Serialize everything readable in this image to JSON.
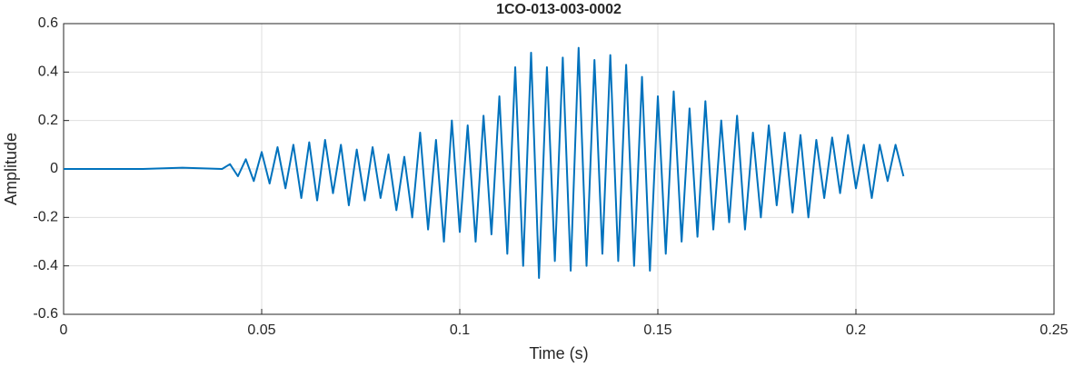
{
  "chart_data": {
    "type": "line",
    "title": "1CO-013-003-0002",
    "xlabel": "Time (s)",
    "ylabel": "Amplitude",
    "xlim": [
      0,
      0.25
    ],
    "xticks": [
      0,
      0.05,
      0.1,
      0.15,
      0.2,
      0.25
    ],
    "ylim": [
      -0.6,
      0.6
    ],
    "yticks": [
      -0.6,
      -0.4,
      -0.2,
      0,
      0.2,
      0.4,
      0.6
    ],
    "grid": true,
    "series": [
      {
        "color": "#0072bd",
        "x": [
          0,
          0.01,
          0.02,
          0.03,
          0.04,
          0.042,
          0.044,
          0.046,
          0.048,
          0.05,
          0.052,
          0.054,
          0.056,
          0.058,
          0.06,
          0.062,
          0.064,
          0.066,
          0.068,
          0.07,
          0.072,
          0.074,
          0.076,
          0.078,
          0.08,
          0.082,
          0.084,
          0.086,
          0.088,
          0.09,
          0.092,
          0.094,
          0.096,
          0.098,
          0.1,
          0.102,
          0.104,
          0.106,
          0.108,
          0.11,
          0.112,
          0.114,
          0.116,
          0.118,
          0.12,
          0.122,
          0.124,
          0.126,
          0.128,
          0.13,
          0.132,
          0.134,
          0.136,
          0.138,
          0.14,
          0.142,
          0.144,
          0.146,
          0.148,
          0.15,
          0.152,
          0.154,
          0.156,
          0.158,
          0.16,
          0.162,
          0.164,
          0.166,
          0.168,
          0.17,
          0.172,
          0.174,
          0.176,
          0.178,
          0.18,
          0.182,
          0.184,
          0.186,
          0.188,
          0.19,
          0.192,
          0.194,
          0.196,
          0.198,
          0.2,
          0.202,
          0.204,
          0.206,
          0.208,
          0.21,
          0.212
        ],
        "values": [
          0,
          0,
          0,
          0.005,
          0,
          0.02,
          -0.03,
          0.04,
          -0.05,
          0.07,
          -0.06,
          0.09,
          -0.08,
          0.1,
          -0.12,
          0.11,
          -0.13,
          0.12,
          -0.1,
          0.1,
          -0.15,
          0.08,
          -0.13,
          0.09,
          -0.12,
          0.06,
          -0.17,
          0.05,
          -0.2,
          0.15,
          -0.25,
          0.12,
          -0.3,
          0.2,
          -0.26,
          0.18,
          -0.3,
          0.22,
          -0.27,
          0.3,
          -0.35,
          0.42,
          -0.4,
          0.48,
          -0.45,
          0.42,
          -0.38,
          0.46,
          -0.42,
          0.5,
          -0.4,
          0.45,
          -0.35,
          0.47,
          -0.38,
          0.43,
          -0.4,
          0.38,
          -0.42,
          0.3,
          -0.35,
          0.32,
          -0.3,
          0.25,
          -0.28,
          0.28,
          -0.25,
          0.2,
          -0.22,
          0.22,
          -0.25,
          0.15,
          -0.2,
          0.18,
          -0.15,
          0.15,
          -0.18,
          0.14,
          -0.2,
          0.12,
          -0.12,
          0.13,
          -0.1,
          0.14,
          -0.08,
          0.1,
          -0.12,
          0.1,
          -0.05,
          0.1,
          -0.03
        ]
      }
    ]
  }
}
